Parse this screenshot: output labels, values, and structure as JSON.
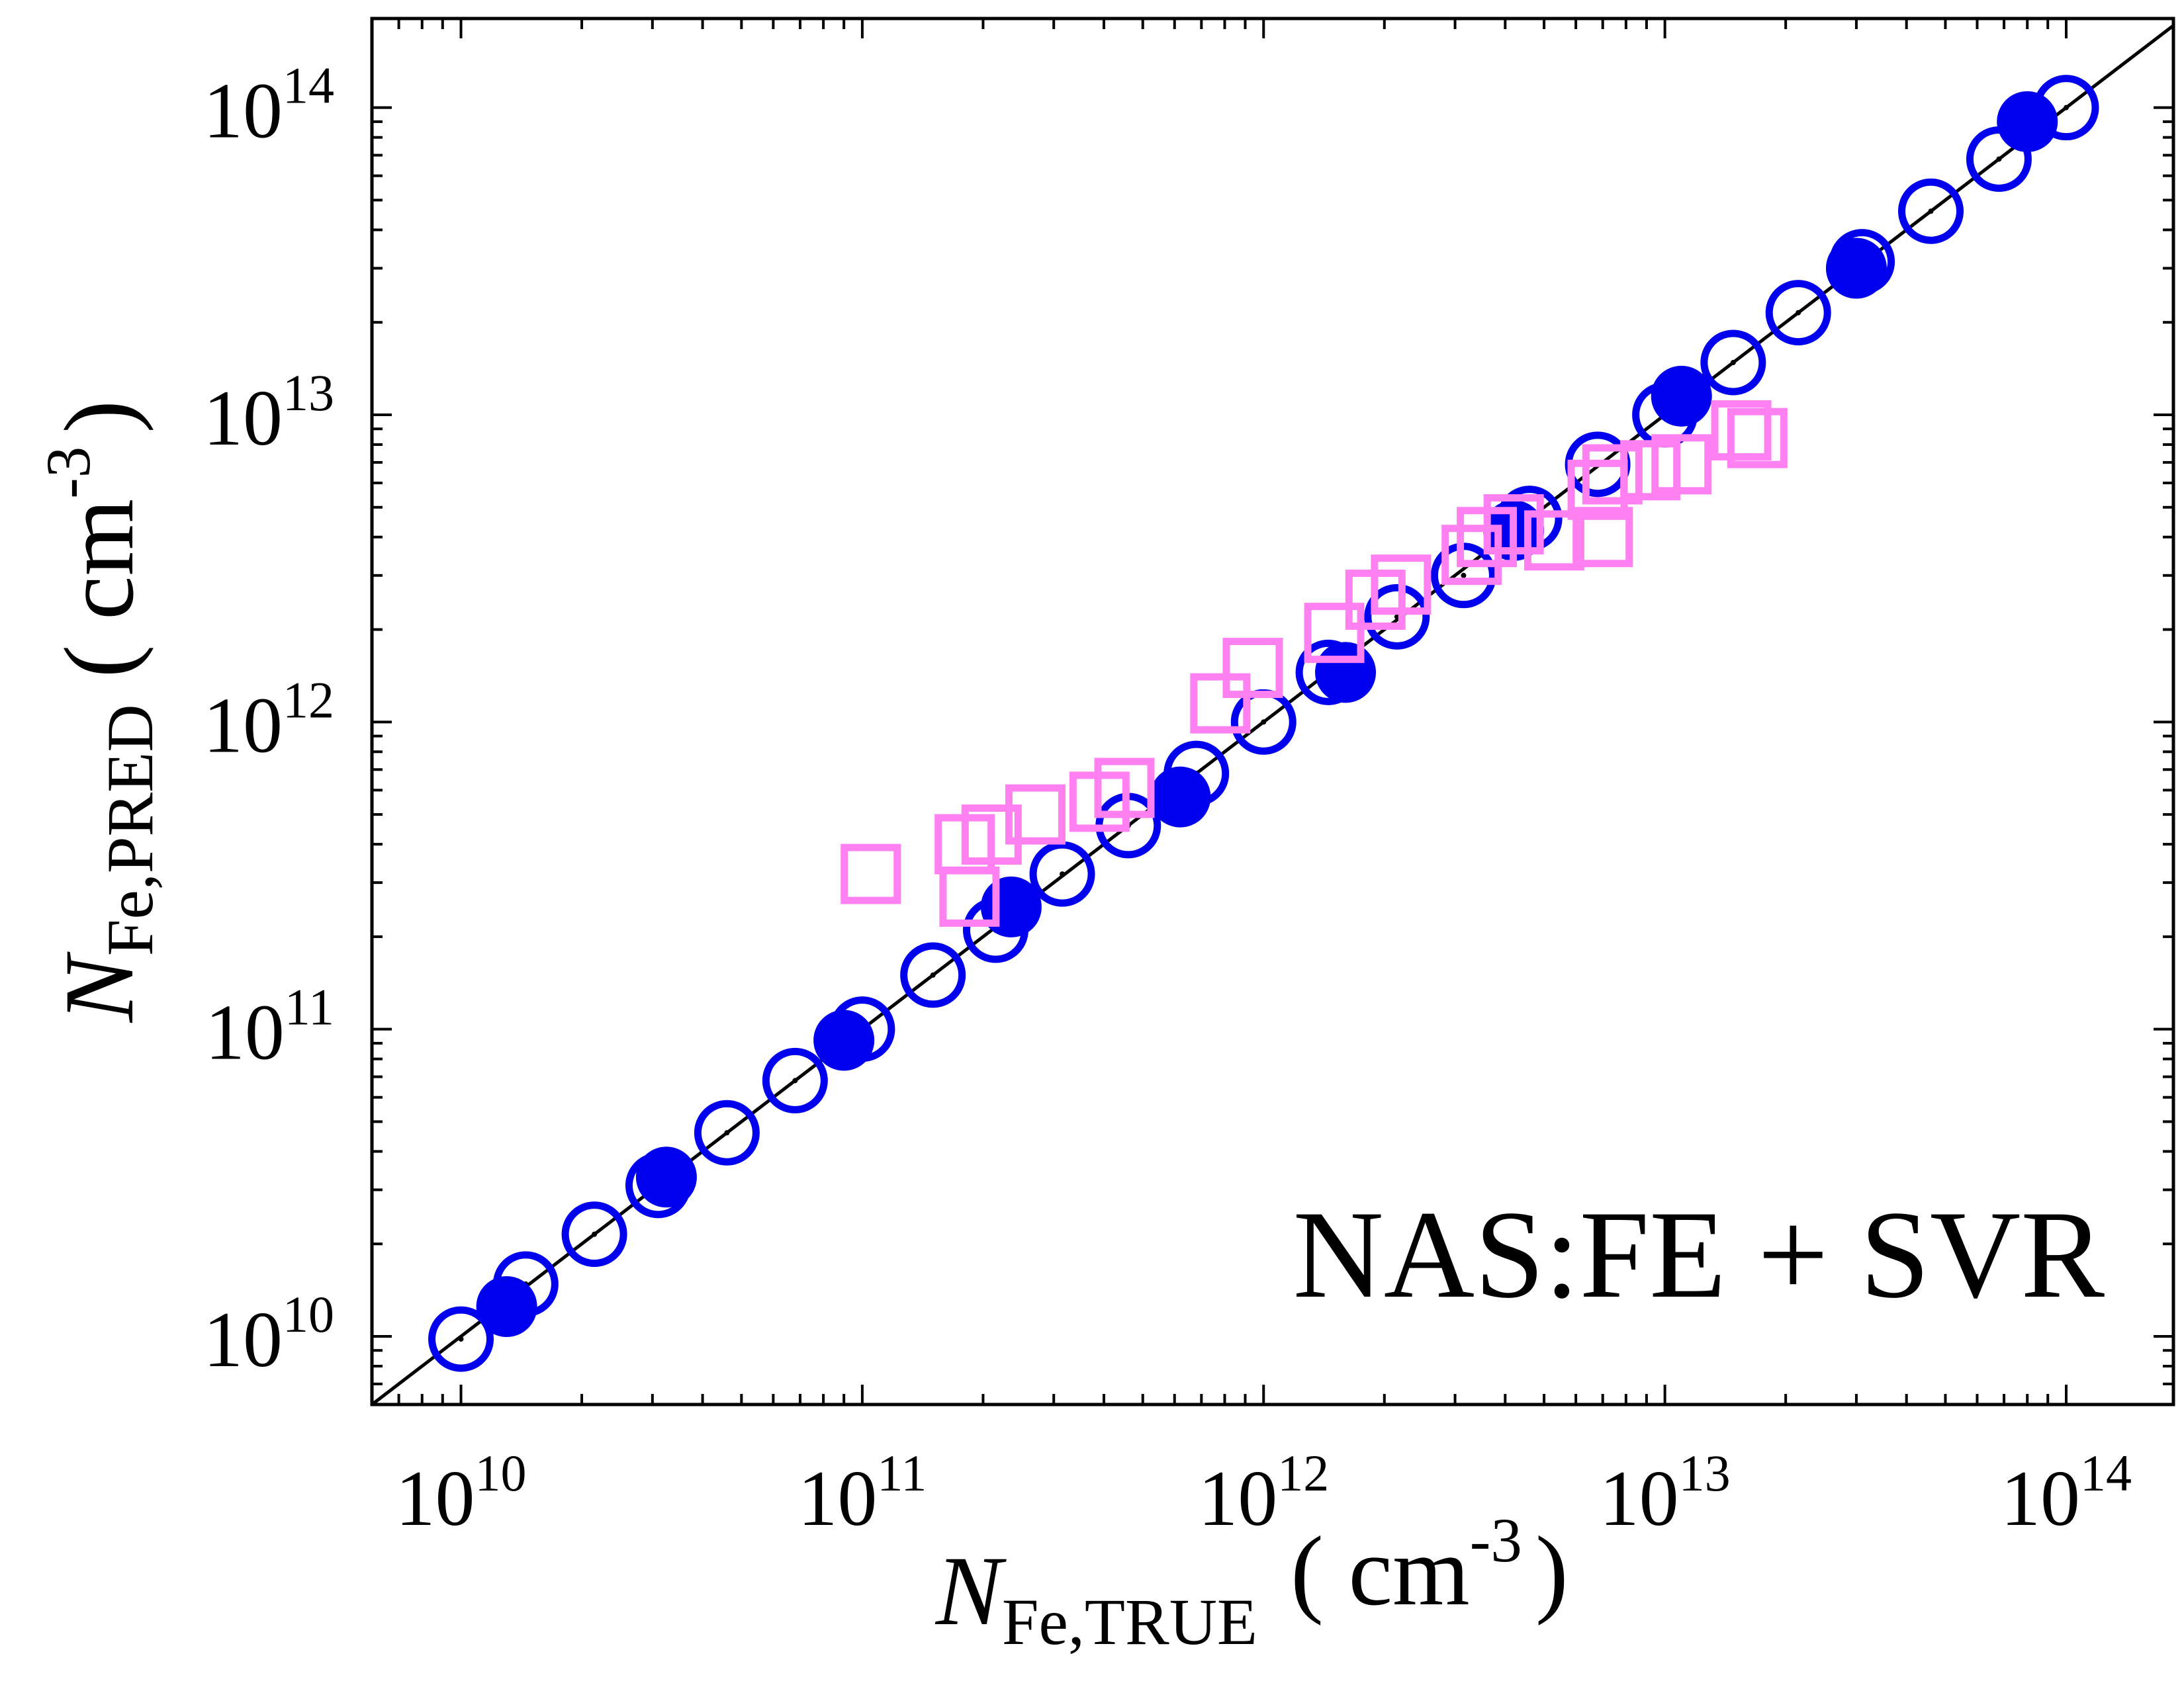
{
  "chart_data": {
    "type": "scatter",
    "title": "",
    "annotation": "NAS:FE + SVR",
    "xlabel": {
      "main": "N",
      "sub": "Fe,TRUE",
      "unit_open": "( cm",
      "unit_exp": "-3",
      "unit_close": ")"
    },
    "ylabel": {
      "main": "N",
      "sub": "Fe,PRED",
      "unit_open": "( cm",
      "unit_exp": "-3",
      "unit_close": ")"
    },
    "x_scale": "log",
    "y_scale": "log",
    "xlim": [
      6000000000.0,
      185000000000000.0
    ],
    "ylim": [
      6000000000.0,
      195000000000000.0
    ],
    "x_ticks": [
      {
        "base": "10",
        "exp": "10"
      },
      {
        "base": "10",
        "exp": "11"
      },
      {
        "base": "10",
        "exp": "12"
      },
      {
        "base": "10",
        "exp": "13"
      },
      {
        "base": "10",
        "exp": "14"
      }
    ],
    "y_ticks": [
      {
        "base": "10",
        "exp": "10"
      },
      {
        "base": "10",
        "exp": "11"
      },
      {
        "base": "10",
        "exp": "12"
      },
      {
        "base": "10",
        "exp": "13"
      },
      {
        "base": "10",
        "exp": "14"
      }
    ],
    "reference_line": "y = x",
    "grid": false,
    "legend": "none",
    "colors": {
      "open_circle": "#0000ee",
      "filled_circle": "#0000ee",
      "open_square": "#ff80f0",
      "line": "#000000"
    },
    "series": [
      {
        "marker": "open-circle",
        "points": [
          [
            10000000000.0,
            9800000000.0
          ],
          [
            14500000000.0,
            14800000000.0
          ],
          [
            21500000000.0,
            21500000000.0
          ],
          [
            31000000000.0,
            31000000000.0
          ],
          [
            46000000000.0,
            46000000000.0
          ],
          [
            68000000000.0,
            68000000000.0
          ],
          [
            100000000000.0,
            100000000000.0
          ],
          [
            150000000000.0,
            150000000000.0
          ],
          [
            215000000000.0,
            210000000000.0
          ],
          [
            315000000000.0,
            320000000000.0
          ],
          [
            460000000000.0,
            460000000000.0
          ],
          [
            680000000000.0,
            680000000000.0
          ],
          [
            1000000000000.0,
            1000000000000.0
          ],
          [
            1450000000000.0,
            1450000000000.0
          ],
          [
            2150000000000.0,
            2200000000000.0
          ],
          [
            3150000000000.0,
            3000000000000.0
          ],
          [
            4600000000000.0,
            4600000000000.0
          ],
          [
            6800000000000.0,
            6900000000000.0
          ],
          [
            10000000000000.0,
            10000000000000.0
          ],
          [
            14800000000000.0,
            14800000000000.0
          ],
          [
            21500000000000.0,
            21500000000000.0
          ],
          [
            31000000000000.0,
            31500000000000.0
          ],
          [
            46000000000000.0,
            46000000000000.0
          ],
          [
            68000000000000.0,
            68000000000000.0
          ],
          [
            100000000000000.0,
            100000000000000.0
          ]
        ]
      },
      {
        "marker": "filled-circle",
        "points": [
          [
            13000000000.0,
            12500000000.0
          ],
          [
            32500000000.0,
            33000000000.0
          ],
          [
            90000000000.0,
            92000000000.0
          ],
          [
            235000000000.0,
            250000000000.0
          ],
          [
            620000000000.0,
            570000000000.0
          ],
          [
            1600000000000.0,
            1450000000000.0
          ],
          [
            4200000000000.0,
            4200000000000.0
          ],
          [
            11000000000000.0,
            11500000000000.0
          ],
          [
            30000000000000.0,
            30000000000000.0
          ],
          [
            80000000000000.0,
            90000000000000.0
          ]
        ]
      },
      {
        "marker": "open-square",
        "points": [
          [
            105000000000.0,
            320000000000.0
          ],
          [
            185000000000.0,
            270000000000.0
          ],
          [
            180000000000.0,
            400000000000.0
          ],
          [
            210000000000.0,
            430000000000.0
          ],
          [
            270000000000.0,
            500000000000.0
          ],
          [
            390000000000.0,
            550000000000.0
          ],
          [
            450000000000.0,
            610000000000.0
          ],
          [
            780000000000.0,
            1150000000000.0
          ],
          [
            940000000000.0,
            1500000000000.0
          ],
          [
            1500000000000.0,
            1950000000000.0
          ],
          [
            1900000000000.0,
            2500000000000.0
          ],
          [
            2200000000000.0,
            2800000000000.0
          ],
          [
            3300000000000.0,
            3500000000000.0
          ],
          [
            3600000000000.0,
            4000000000000.0
          ],
          [
            4200000000000.0,
            4400000000000.0
          ],
          [
            5300000000000.0,
            3900000000000.0
          ],
          [
            7000000000000.0,
            4000000000000.0
          ],
          [
            6800000000000.0,
            5700000000000.0
          ],
          [
            7400000000000.0,
            6400000000000.0
          ],
          [
            9200000000000.0,
            6600000000000.0
          ],
          [
            11000000000000.0,
            6900000000000.0
          ],
          [
            15500000000000.0,
            8900000000000.0
          ],
          [
            17000000000000.0,
            8400000000000.0
          ]
        ]
      }
    ]
  }
}
